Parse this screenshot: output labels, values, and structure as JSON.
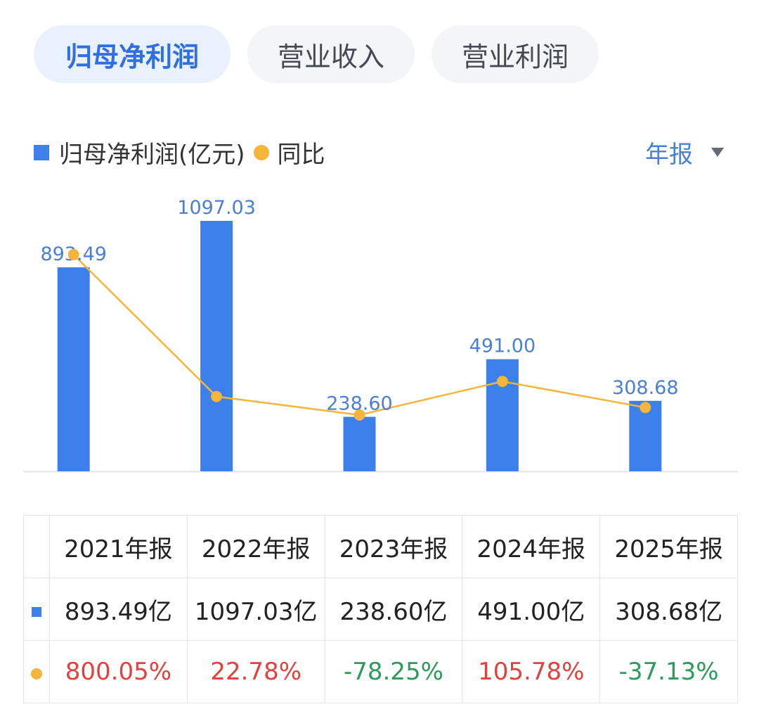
{
  "tabs": [
    {
      "label": "归母净利润",
      "active": true
    },
    {
      "label": "营业收入",
      "active": false
    },
    {
      "label": "营业利润",
      "active": false
    }
  ],
  "legend": {
    "bar_label": "归母净利润(亿元)",
    "dot_label": "同比"
  },
  "period_selector": {
    "label": "年报"
  },
  "colors": {
    "bar": "#3b80eb",
    "line": "#f3b63a",
    "positive": "#e0423d",
    "negative": "#2e9a5c",
    "bar_label": "#4a7fd3"
  },
  "chart_data": {
    "type": "bar",
    "categories": [
      "2021年报",
      "2022年报",
      "2023年报",
      "2024年报",
      "2025年报"
    ],
    "series": [
      {
        "name": "归母净利润(亿元)",
        "type": "bar",
        "values": [
          893.49,
          1097.03,
          238.6,
          491.0,
          308.68
        ],
        "labels": [
          "893.49",
          "1097.03",
          "238.60",
          "491.00",
          "308.68"
        ]
      },
      {
        "name": "同比",
        "type": "line",
        "values": [
          800.05,
          22.78,
          -78.25,
          105.78,
          -37.13
        ]
      }
    ],
    "title": "",
    "xlabel": "",
    "ylabel": "",
    "ylim": [
      0,
      1097.03
    ]
  },
  "table": {
    "headers": [
      "2021年报",
      "2022年报",
      "2023年报",
      "2024年报",
      "2025年报"
    ],
    "values": [
      "893.49亿",
      "1097.03亿",
      "238.60亿",
      "491.00亿",
      "308.68亿"
    ],
    "growth": [
      "800.05%",
      "22.78%",
      "-78.25%",
      "105.78%",
      "-37.13%"
    ]
  }
}
